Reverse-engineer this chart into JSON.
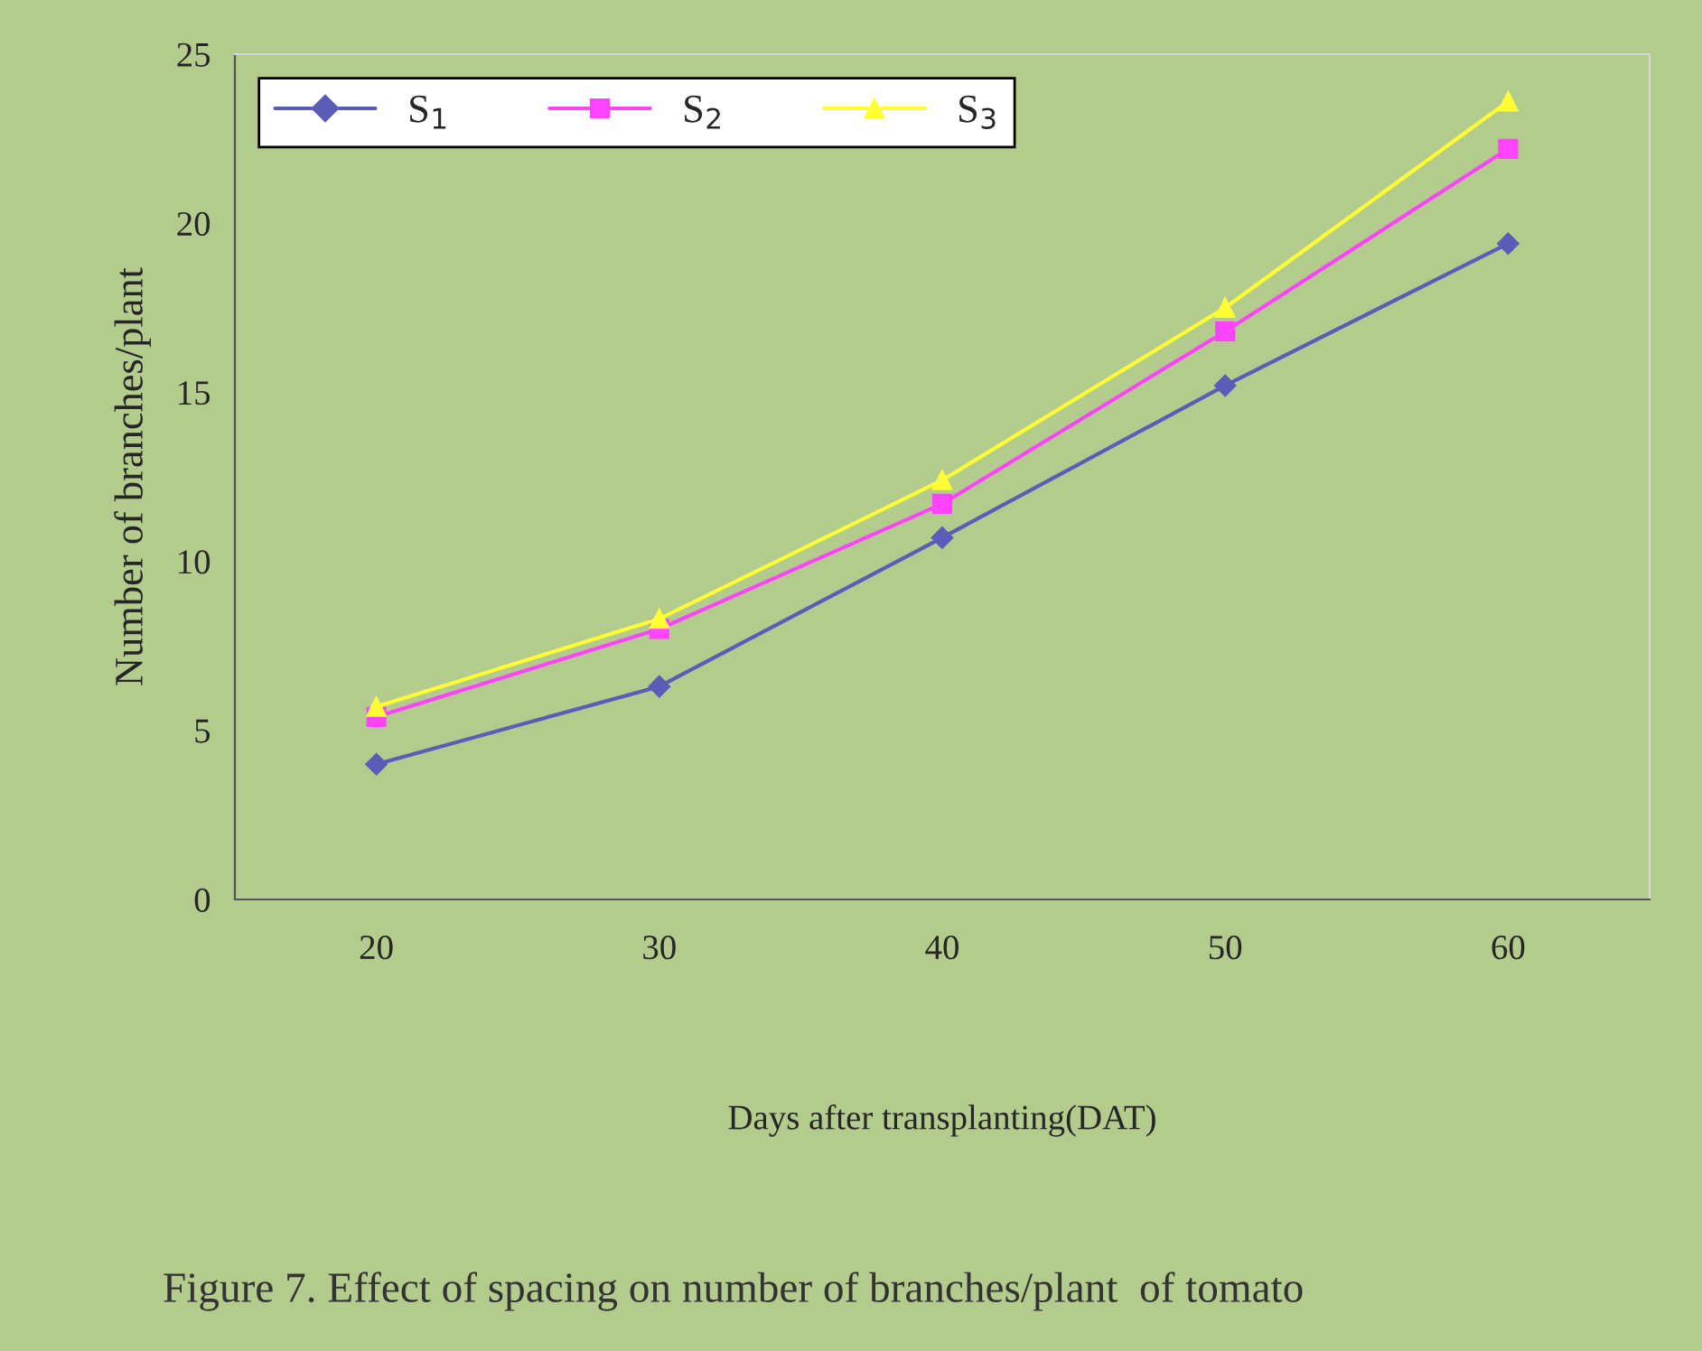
{
  "chart_data": {
    "type": "line",
    "xlabel": "Days after transplanting(DAT)",
    "ylabel": "Number of branches/plant",
    "categories": [
      "20",
      "30",
      "40",
      "50",
      "60"
    ],
    "series": [
      {
        "name": "S$_{1}$",
        "color": "#5c5cb8",
        "marker": "diamond",
        "values": [
          4.0,
          6.3,
          10.7,
          15.2,
          19.4
        ]
      },
      {
        "name": "S$_{2}$",
        "color": "#ff44ff",
        "marker": "square",
        "values": [
          5.4,
          8.0,
          11.7,
          16.8,
          22.2
        ]
      },
      {
        "name": "S$_{3}$",
        "color": "#ffff33",
        "marker": "triangle",
        "values": [
          5.7,
          8.3,
          12.4,
          17.5,
          23.6
        ]
      }
    ],
    "ylim": [
      0,
      25
    ],
    "yticks": [
      0,
      5,
      10,
      15,
      20,
      25
    ],
    "grid": false,
    "legend": "top left",
    "line_style": "solid",
    "annotations": [
      "Figure 7. Effect of spacing on number of branches/plant  of tomato"
    ]
  }
}
